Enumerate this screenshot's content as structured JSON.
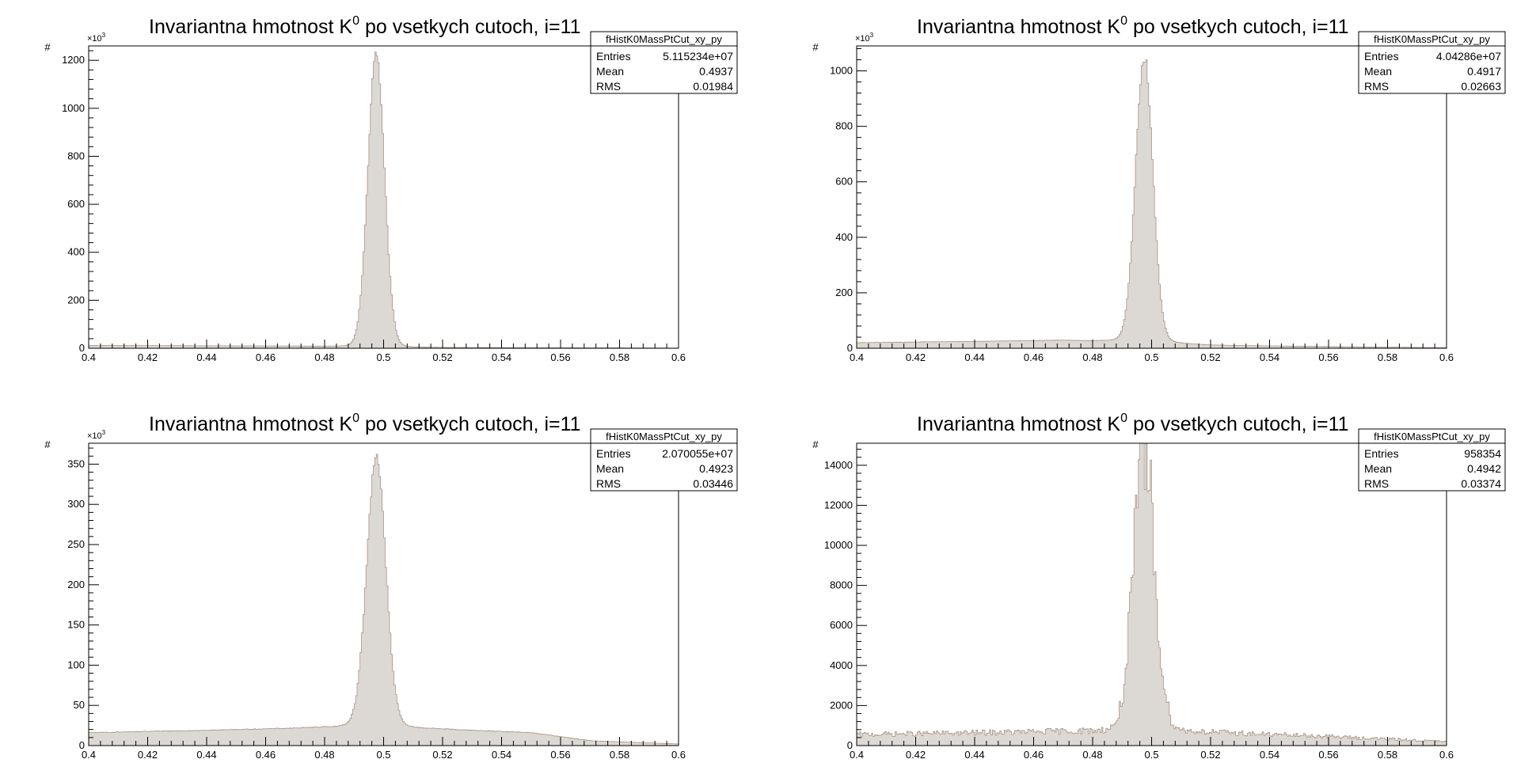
{
  "chart_data": [
    {
      "type": "histogram",
      "title": "Invariantna hmotnost K",
      "title_sup": "0",
      "title_suffix": " po vsetkych cutoch, i=11",
      "ylabel": "#",
      "y_multiplier": "×10",
      "y_multiplier_sup": "3",
      "xlim": [
        0.4,
        0.6
      ],
      "ylim": [
        0,
        1260
      ],
      "yticks": [
        0,
        200,
        400,
        600,
        800,
        1000,
        1200
      ],
      "ytick_labels": [
        "0",
        "200",
        "400",
        "600",
        "800",
        "1000",
        "1200"
      ],
      "xticks": [
        0.4,
        0.42,
        0.44,
        0.46,
        0.48,
        0.5,
        0.52,
        0.54,
        0.56,
        0.58,
        0.6
      ],
      "xtick_labels": [
        "0.4",
        "0.42",
        "0.44",
        "0.46",
        "0.48",
        "0.5",
        "0.52",
        "0.54",
        "0.56",
        "0.58",
        "0.6"
      ],
      "stats": {
        "name": "fHistK0MassPtCut_xy_py",
        "rows": [
          [
            "Entries",
            "5.115234e+07"
          ],
          [
            "Mean",
            "0.4937"
          ],
          [
            "RMS",
            "0.01984"
          ]
        ]
      },
      "peak": {
        "mu": 0.4975,
        "sigma": 0.0028,
        "amp": 1195,
        "lorentz_amp": 25,
        "gamma": 0.004
      },
      "background": {
        "points": [
          [
            0.4,
            12
          ],
          [
            0.47,
            9
          ],
          [
            0.52,
            3
          ],
          [
            0.6,
            1
          ]
        ]
      },
      "noise": 0.02,
      "fill": "#dcd8d4",
      "line": "#a08878"
    },
    {
      "type": "histogram",
      "title": "Invariantna hmotnost K",
      "title_sup": "0",
      "title_suffix": " po vsetkych cutoch, i=11",
      "ylabel": "#",
      "y_multiplier": "×10",
      "y_multiplier_sup": "3",
      "xlim": [
        0.4,
        0.6
      ],
      "ylim": [
        0,
        1090
      ],
      "yticks": [
        0,
        200,
        400,
        600,
        800,
        1000
      ],
      "ytick_labels": [
        "0",
        "200",
        "400",
        "600",
        "800",
        "1000"
      ],
      "xticks": [
        0.4,
        0.42,
        0.44,
        0.46,
        0.48,
        0.5,
        0.52,
        0.54,
        0.56,
        0.58,
        0.6
      ],
      "xtick_labels": [
        "0.4",
        "0.42",
        "0.44",
        "0.46",
        "0.48",
        "0.5",
        "0.52",
        "0.54",
        "0.56",
        "0.58",
        "0.6"
      ],
      "stats": {
        "name": "fHistK0MassPtCut_xy_py",
        "rows": [
          [
            "Entries",
            "4.04286e+07"
          ],
          [
            "Mean",
            "0.4917"
          ],
          [
            "RMS",
            "0.02663"
          ]
        ]
      },
      "peak": {
        "mu": 0.4975,
        "sigma": 0.0029,
        "amp": 990,
        "lorentz_amp": 45,
        "gamma": 0.005
      },
      "background": {
        "points": [
          [
            0.4,
            20
          ],
          [
            0.47,
            28
          ],
          [
            0.52,
            10
          ],
          [
            0.6,
            2
          ]
        ]
      },
      "noise": 0.02,
      "fill": "#dcd8d4",
      "line": "#a08878"
    },
    {
      "type": "histogram",
      "title": "Invariantna hmotnost K",
      "title_sup": "0",
      "title_suffix": " po vsetkych cutoch, i=11",
      "ylabel": "#",
      "y_multiplier": "×10",
      "y_multiplier_sup": "3",
      "xlim": [
        0.4,
        0.6
      ],
      "ylim": [
        0,
        376
      ],
      "yticks": [
        0,
        50,
        100,
        150,
        200,
        250,
        300,
        350
      ],
      "ytick_labels": [
        "0",
        "50",
        "100",
        "150",
        "200",
        "250",
        "300",
        "350"
      ],
      "xticks": [
        0.4,
        0.42,
        0.44,
        0.46,
        0.48,
        0.5,
        0.52,
        0.54,
        0.56,
        0.58,
        0.6
      ],
      "xtick_labels": [
        "0.4",
        "0.42",
        "0.44",
        "0.46",
        "0.48",
        "0.5",
        "0.52",
        "0.54",
        "0.56",
        "0.58",
        "0.6"
      ],
      "stats": {
        "name": "fHistK0MassPtCut_xy_py",
        "rows": [
          [
            "Entries",
            "2.070055e+07"
          ],
          [
            "Mean",
            "0.4923"
          ],
          [
            "RMS",
            "0.03446"
          ]
        ]
      },
      "peak": {
        "mu": 0.4975,
        "sigma": 0.0032,
        "amp": 320,
        "lorentz_amp": 20,
        "gamma": 0.005
      },
      "background": {
        "points": [
          [
            0.4,
            16
          ],
          [
            0.48,
            22
          ],
          [
            0.52,
            20
          ],
          [
            0.55,
            16
          ],
          [
            0.57,
            6
          ],
          [
            0.6,
            2
          ]
        ]
      },
      "noise": 0.02,
      "fill": "#dcd8d4",
      "line": "#a08878"
    },
    {
      "type": "histogram",
      "title": "Invariantna hmotnost K",
      "title_sup": "0",
      "title_suffix": " po vsetkych cutoch, i=11",
      "ylabel": "#",
      "y_multiplier": "",
      "y_multiplier_sup": "",
      "xlim": [
        0.4,
        0.6
      ],
      "ylim": [
        0,
        15100
      ],
      "yticks": [
        0,
        2000,
        4000,
        6000,
        8000,
        10000,
        12000,
        14000
      ],
      "ytick_labels": [
        "0",
        "2000",
        "4000",
        "6000",
        "8000",
        "10000",
        "12000",
        "14000"
      ],
      "xticks": [
        0.4,
        0.42,
        0.44,
        0.46,
        0.48,
        0.5,
        0.52,
        0.54,
        0.56,
        0.58,
        0.6
      ],
      "xtick_labels": [
        "0.4",
        "0.42",
        "0.44",
        "0.46",
        "0.48",
        "0.5",
        "0.52",
        "0.54",
        "0.56",
        "0.58",
        "0.6"
      ],
      "stats": {
        "name": "fHistK0MassPtCut_xy_py",
        "rows": [
          [
            "Entries",
            "958354"
          ],
          [
            "Mean",
            "0.4942"
          ],
          [
            "RMS",
            "0.03374"
          ]
        ]
      },
      "peak": {
        "mu": 0.4975,
        "sigma": 0.0036,
        "amp": 12800,
        "lorentz_amp": 800,
        "gamma": 0.005
      },
      "background": {
        "points": [
          [
            0.4,
            550
          ],
          [
            0.47,
            700
          ],
          [
            0.52,
            650
          ],
          [
            0.56,
            450
          ],
          [
            0.6,
            200
          ]
        ]
      },
      "noise": 0.22,
      "fill": "#dcd8d4",
      "line": "#a08878"
    }
  ]
}
